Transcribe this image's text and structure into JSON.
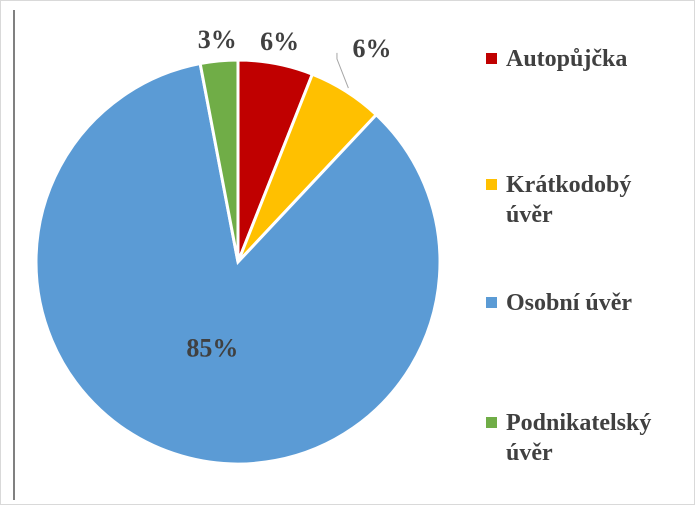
{
  "chart_data": {
    "type": "pie",
    "categories": [
      "Autopůjčka",
      "Krátkodobý úvěr",
      "Osobní úvěr",
      "Podnikatelský úvěr"
    ],
    "values": [
      6,
      6,
      85,
      3
    ],
    "value_labels": [
      "6%",
      "6%",
      "85%",
      "3%"
    ],
    "colors": [
      "#c00000",
      "#ffc000",
      "#5b9bd5",
      "#70ad47"
    ],
    "legend": "right"
  }
}
